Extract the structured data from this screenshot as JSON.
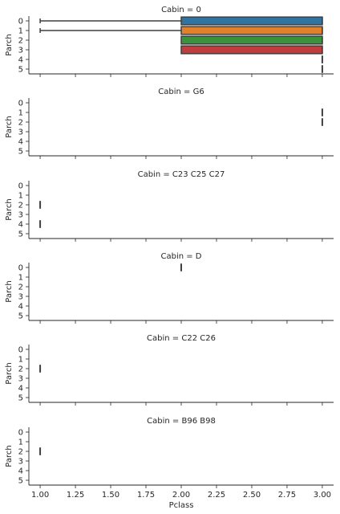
{
  "chart_data": {
    "type": "boxplot",
    "layout": "faceted-rows",
    "orient": "horizontal",
    "xlabel": "Pclass",
    "ylabel": "Parch",
    "xlim": [
      0.92,
      3.08
    ],
    "x_ticks": [
      1.0,
      1.25,
      1.5,
      1.75,
      2.0,
      2.25,
      2.5,
      2.75,
      3.0
    ],
    "x_tick_labels": [
      "1.00",
      "1.25",
      "1.50",
      "1.75",
      "2.00",
      "2.25",
      "2.50",
      "2.75",
      "3.00"
    ],
    "categories": [
      "0",
      "1",
      "2",
      "3",
      "4",
      "5"
    ],
    "category_colors": [
      "#3274a1",
      "#e1812c",
      "#3a923a",
      "#c03d3e",
      "#9372b2",
      "#845b53"
    ],
    "panels": [
      {
        "title": "Cabin = 0",
        "boxes": [
          {
            "category": "0",
            "whisker_low": 1,
            "q1": 2,
            "median": 3,
            "q3": 3,
            "whisker_high": 3
          },
          {
            "category": "1",
            "whisker_low": 1,
            "q1": 2,
            "median": 3,
            "q3": 3,
            "whisker_high": 3
          },
          {
            "category": "2",
            "whisker_low": 2,
            "q1": 2,
            "median": 3,
            "q3": 3,
            "whisker_high": 3
          },
          {
            "category": "3",
            "whisker_low": 2,
            "q1": 2,
            "median": 3,
            "q3": 3,
            "whisker_high": 3
          },
          {
            "category": "4",
            "whisker_low": 3,
            "q1": 3,
            "median": 3,
            "q3": 3,
            "whisker_high": 3
          },
          {
            "category": "5",
            "whisker_low": 3,
            "q1": 3,
            "median": 3,
            "q3": 3,
            "whisker_high": 3
          }
        ]
      },
      {
        "title": "Cabin = G6",
        "boxes": [
          {
            "category": "1",
            "whisker_low": 3,
            "q1": 3,
            "median": 3,
            "q3": 3,
            "whisker_high": 3
          },
          {
            "category": "2",
            "whisker_low": 3,
            "q1": 3,
            "median": 3,
            "q3": 3,
            "whisker_high": 3
          }
        ]
      },
      {
        "title": "Cabin = C23 C25 C27",
        "boxes": [
          {
            "category": "2",
            "whisker_low": 1,
            "q1": 1,
            "median": 1,
            "q3": 1,
            "whisker_high": 1
          },
          {
            "category": "4",
            "whisker_low": 1,
            "q1": 1,
            "median": 1,
            "q3": 1,
            "whisker_high": 1
          }
        ]
      },
      {
        "title": "Cabin = D",
        "boxes": [
          {
            "category": "0",
            "whisker_low": 2,
            "q1": 2,
            "median": 2,
            "q3": 2,
            "whisker_high": 2
          }
        ]
      },
      {
        "title": "Cabin = C22 C26",
        "boxes": [
          {
            "category": "2",
            "whisker_low": 1,
            "q1": 1,
            "median": 1,
            "q3": 1,
            "whisker_high": 1
          }
        ]
      },
      {
        "title": "Cabin = B96 B98",
        "boxes": [
          {
            "category": "2",
            "whisker_low": 1,
            "q1": 1,
            "median": 1,
            "q3": 1,
            "whisker_high": 1
          }
        ]
      }
    ]
  }
}
